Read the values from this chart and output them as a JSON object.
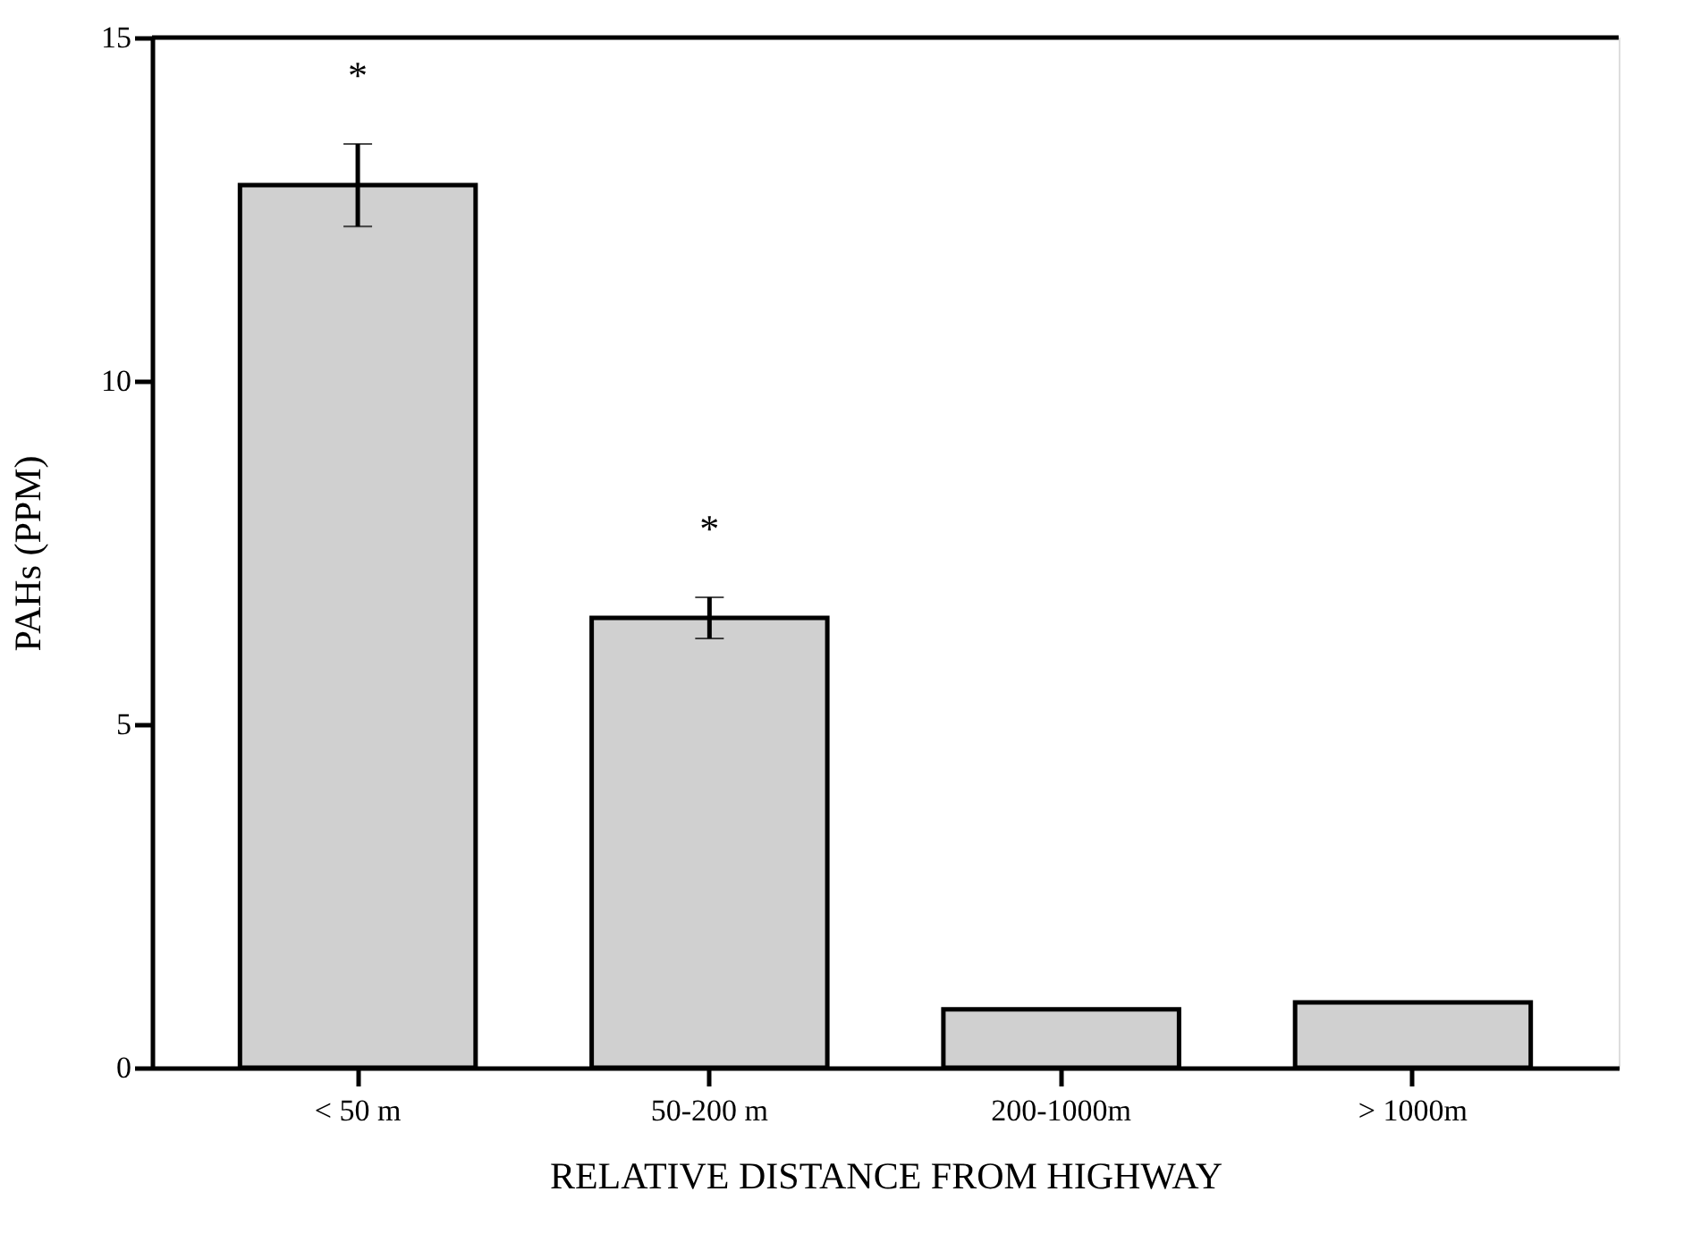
{
  "chart_data": {
    "type": "bar",
    "xlabel": "RELATIVE DISTANCE FROM HIGHWAY",
    "ylabel": "PAHs (PPM)",
    "categories": [
      "< 50 m",
      "50-200 m",
      "200-1000m",
      "> 1000m"
    ],
    "values": [
      12.85,
      6.55,
      0.85,
      0.95
    ],
    "color": "#d0d0d0",
    "errors": [
      0.6,
      0.3,
      null,
      null
    ],
    "ylim": [
      0,
      15
    ],
    "yticks": [
      0,
      5,
      10,
      15
    ],
    "grid": false,
    "annotations": [
      "*",
      "*"
    ]
  }
}
